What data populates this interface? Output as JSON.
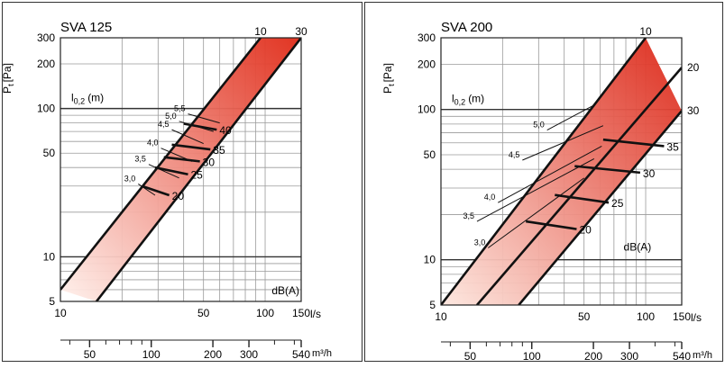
{
  "chart_data": [
    {
      "type": "line",
      "title": "SVA 125",
      "ylabel_main": "P",
      "ylabel_sub": "t",
      "ylabel_unit": "[Pa]",
      "x_unit": "l/s",
      "x2_unit": "m³/h",
      "inner_label_main": "l",
      "inner_label_sub": "0,2",
      "inner_label_unit": "(m)",
      "noise_unit": "dB(A)",
      "xlim": [
        10,
        150
      ],
      "ylim": [
        5,
        300
      ],
      "x_scale": "log",
      "y_scale": "log",
      "x_ticks": [
        "10",
        "50",
        "100",
        "150"
      ],
      "y_ticks": [
        "5",
        "10",
        "50",
        "100",
        "200",
        "300"
      ],
      "x2_ticks": [
        "50",
        "100",
        "200",
        "300",
        "540"
      ],
      "x2_tick_values": [
        50,
        100,
        200,
        300,
        540
      ],
      "band_lines": [
        {
          "name": "10",
          "points": [
            [
              10,
              6
            ],
            [
              95,
              300
            ]
          ]
        },
        {
          "name": "30",
          "points": [
            [
              15,
              5
            ],
            [
              150,
              300
            ]
          ]
        }
      ],
      "throw_lines": [
        {
          "label": "3,0",
          "points": [
            [
              24,
              31
            ],
            [
              29,
              26
            ]
          ]
        },
        {
          "label": "3,5",
          "points": [
            [
              27,
              42
            ],
            [
              38,
              34
            ]
          ]
        },
        {
          "label": "4,0",
          "points": [
            [
              31,
              54
            ],
            [
              44,
              44
            ]
          ]
        },
        {
          "label": "4,5",
          "points": [
            [
              35,
              72
            ],
            [
              50,
              58
            ]
          ]
        },
        {
          "label": "5,0",
          "points": [
            [
              38,
              82
            ],
            [
              56,
              70
            ]
          ]
        },
        {
          "label": "5,5",
          "points": [
            [
              42,
              92
            ],
            [
              60,
              80
            ]
          ]
        }
      ],
      "noise_lines": [
        {
          "label": "20",
          "points": [
            [
              25,
              30
            ],
            [
              34,
              26
            ]
          ]
        },
        {
          "label": "25",
          "points": [
            [
              29,
              40
            ],
            [
              42,
              36
            ]
          ]
        },
        {
          "label": "30",
          "points": [
            [
              32,
              47
            ],
            [
              48,
              44
            ]
          ]
        },
        {
          "label": "35",
          "points": [
            [
              35,
              57
            ],
            [
              54,
              53
            ]
          ]
        },
        {
          "label": "40",
          "points": [
            [
              40,
              79
            ],
            [
              58,
              72
            ]
          ]
        }
      ]
    },
    {
      "type": "line",
      "title": "SVA 200",
      "ylabel_main": "P",
      "ylabel_sub": "t",
      "ylabel_unit": "[Pa]",
      "x_unit": "l/s",
      "x2_unit": "m³/h",
      "inner_label_main": "l",
      "inner_label_sub": "0,2",
      "inner_label_unit": "(m)",
      "noise_unit": "dB(A)",
      "xlim": [
        10,
        150
      ],
      "ylim": [
        5,
        300
      ],
      "x_scale": "log",
      "y_scale": "log",
      "x_ticks": [
        "10",
        "50",
        "100",
        "150"
      ],
      "y_ticks": [
        "5",
        "10",
        "50",
        "100",
        "200",
        "300"
      ],
      "x2_ticks": [
        "50",
        "100",
        "200",
        "300",
        "540"
      ],
      "x2_tick_values": [
        50,
        100,
        200,
        300,
        540
      ],
      "band_lines": [
        {
          "name": "10",
          "points": [
            [
              10,
              5
            ],
            [
              100,
              300
            ]
          ]
        },
        {
          "name": "20",
          "points": [
            [
              15,
              5
            ],
            [
              150,
              190
            ]
          ]
        },
        {
          "name": "30",
          "points": [
            [
              24,
              5
            ],
            [
              150,
              98
            ]
          ]
        }
      ],
      "throw_lines": [
        {
          "label": "3,0",
          "points": [
            [
              17,
              12
            ],
            [
              50,
              35
            ]
          ]
        },
        {
          "label": "3,5",
          "points": [
            [
              15,
              18
            ],
            [
              56,
              47
            ]
          ]
        },
        {
          "label": "4,0",
          "points": [
            [
              19,
              24
            ],
            [
              61,
              57
            ]
          ]
        },
        {
          "label": "4,5",
          "points": [
            [
              25,
              46
            ],
            [
              62,
              78
            ]
          ]
        },
        {
          "label": "5,0",
          "points": [
            [
              33,
              73
            ],
            [
              56,
              107
            ]
          ]
        }
      ],
      "noise_lines": [
        {
          "label": "20",
          "points": [
            [
              26,
              18
            ],
            [
              46,
              16
            ]
          ]
        },
        {
          "label": "25",
          "points": [
            [
              36,
              27
            ],
            [
              66,
              24
            ]
          ]
        },
        {
          "label": "30",
          "points": [
            [
              45,
              42
            ],
            [
              94,
              38
            ]
          ]
        },
        {
          "label": "35",
          "points": [
            [
              62,
              63
            ],
            [
              123,
              57
            ]
          ]
        }
      ]
    }
  ]
}
